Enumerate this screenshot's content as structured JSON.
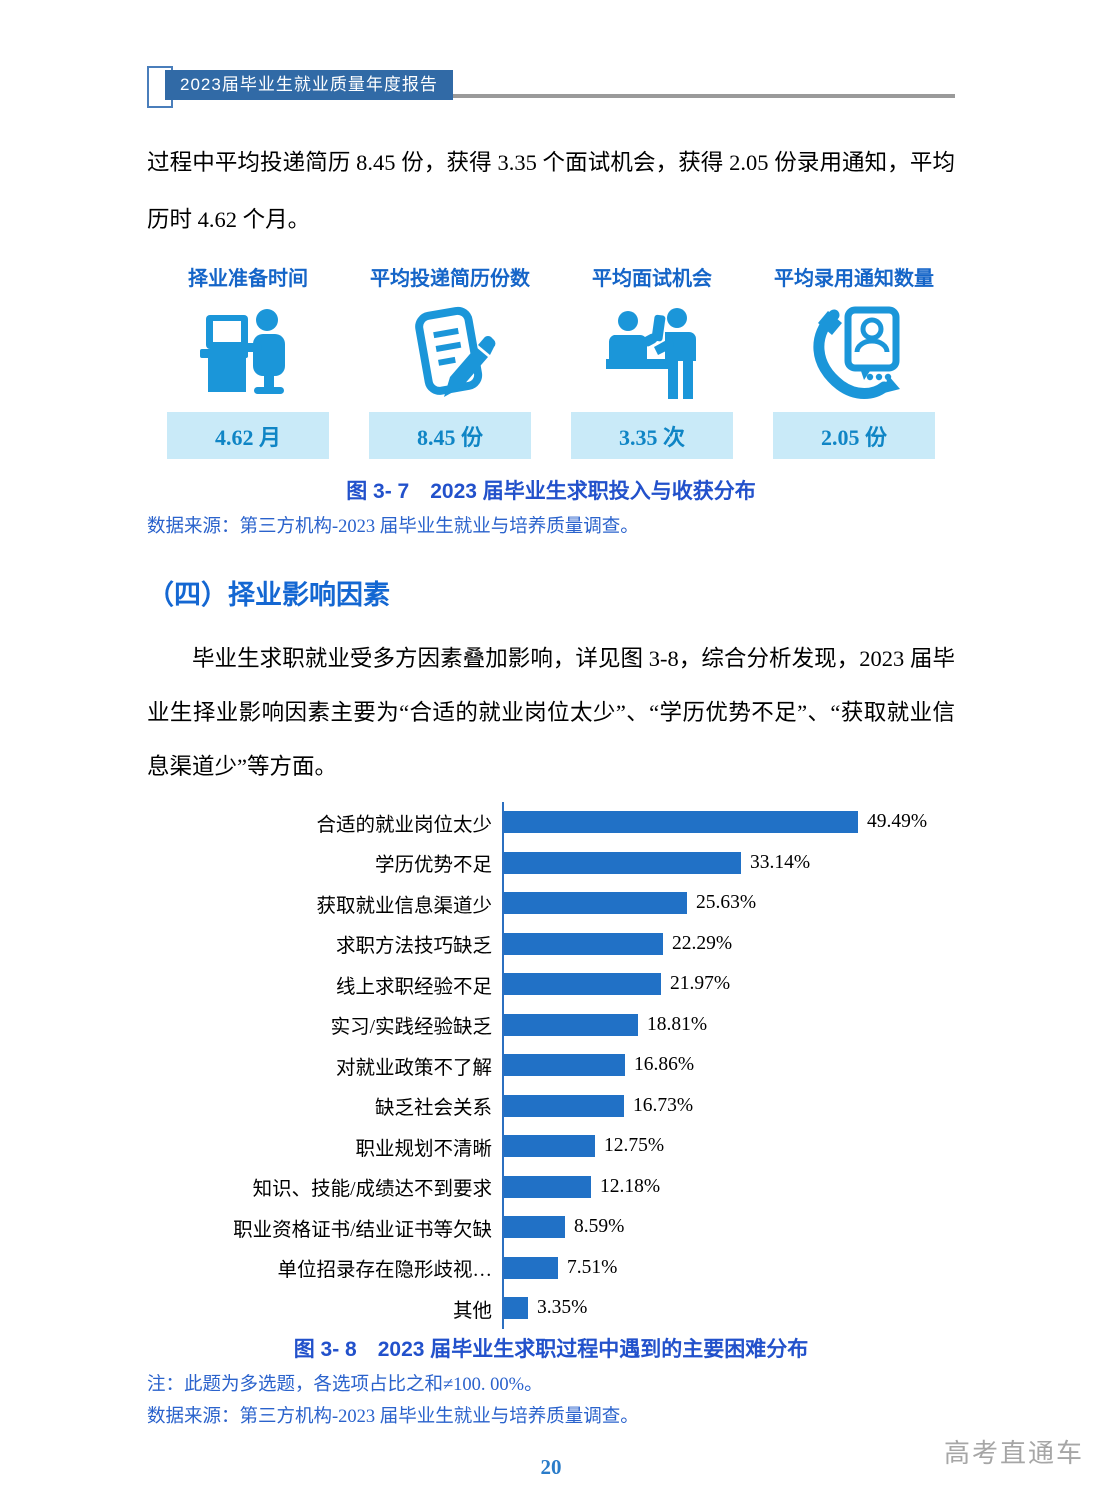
{
  "header": {
    "title": "2023届毕业生就业质量年度报告"
  },
  "intro_paragraph": "过程中平均投递简历 8.45 份，获得 3.35 个面试机会，获得 2.05 份录用通知，平均历时 4.62 个月。",
  "stats": {
    "cards": [
      {
        "title": "择业准备时间",
        "value": "4.62 月",
        "icon": "desk-computer-user-icon"
      },
      {
        "title": "平均投递简历份数",
        "value": "8.45 份",
        "icon": "resume-pencil-icon"
      },
      {
        "title": "平均面试机会",
        "value": "3.35 次",
        "icon": "interview-desk-icon"
      },
      {
        "title": "平均录用通知数量",
        "value": "2.05 份",
        "icon": "phone-contact-card-icon"
      }
    ]
  },
  "figure_3_7": {
    "caption": "图 3- 7　2023 届毕业生求职投入与收获分布",
    "source": "数据来源：第三方机构-2023 届毕业生就业与培养质量调查。"
  },
  "section": {
    "heading": "（四）择业影响因素",
    "paragraph": "毕业生求职就业受多方因素叠加影响，详见图 3-8，综合分析发现，2023 届毕业生择业影响因素主要为“合适的就业岗位太少”、“学历优势不足”、“获取就业信息渠道少”等方面。"
  },
  "chart_data": {
    "type": "bar",
    "orientation": "horizontal",
    "title": "图 3- 8　2023 届毕业生求职过程中遇到的主要困难分布",
    "categories": [
      "合适的就业岗位太少",
      "学历优势不足",
      "获取就业信息渠道少",
      "求职方法技巧缺乏",
      "线上求职经验不足",
      "实习/实践经验缺乏",
      "对就业政策不了解",
      "缺乏社会关系",
      "职业规划不清晰",
      "知识、技能/成绩达不到要求",
      "职业资格证书/结业证书等欠缺",
      "单位招录存在隐形歧视…",
      "其他"
    ],
    "values": [
      49.49,
      33.14,
      25.63,
      22.29,
      21.97,
      18.81,
      16.86,
      16.73,
      12.75,
      12.18,
      8.59,
      7.51,
      3.35
    ],
    "value_labels": [
      "49.49%",
      "33.14%",
      "25.63%",
      "22.29%",
      "21.97%",
      "18.81%",
      "16.86%",
      "16.73%",
      "12.75%",
      "12.18%",
      "8.59%",
      "7.51%",
      "3.35%"
    ],
    "xlim": [
      0,
      55
    ],
    "grid": false,
    "legend": false,
    "bar_color": "#2171C6",
    "value_label_position": "end-of-bar"
  },
  "figure_3_8": {
    "caption": "图 3- 8　2023 届毕业生求职过程中遇到的主要困难分布",
    "note": "注：此题为多选题，各选项占比之和≠100. 00%。",
    "source": "数据来源：第三方机构-2023 届毕业生就业与培养质量调查。"
  },
  "footer": {
    "page_number": "20",
    "watermark": "高考直通车"
  },
  "colors": {
    "icon_blue": "#1B96D9",
    "bar_blue": "#2171C6",
    "value_box_bg": "#C9EAF8",
    "value_text": "#0F85C5",
    "caption_blue": "#2251CB",
    "header_badge_blue": "#316AA6",
    "rule_gray": "#9A9A9A"
  }
}
